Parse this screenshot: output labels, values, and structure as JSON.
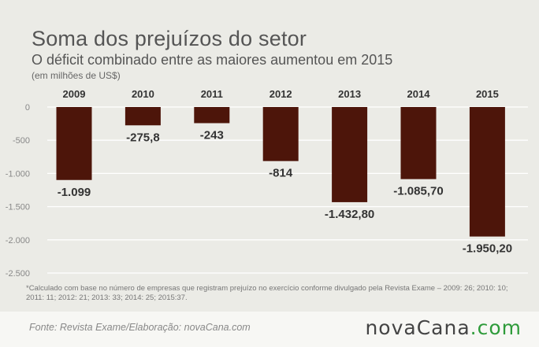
{
  "header": {
    "title": "Soma dos prejuízos do setor",
    "subtitle": "O déficit combinado entre as maiores aumentou em 2015",
    "unit_note": "(em milhões de US$)"
  },
  "chart_data": {
    "type": "bar",
    "categories": [
      "2009",
      "2010",
      "2011",
      "2012",
      "2013",
      "2014",
      "2015"
    ],
    "values": [
      -1099,
      -275.8,
      -243,
      -814,
      -1432.8,
      -1085.7,
      -1950.2
    ],
    "data_labels": [
      "-1.099",
      "-275,8",
      "-243",
      "-814",
      "-1.432,80",
      "-1.085,70",
      "-1.950,20"
    ],
    "ylim": [
      -2500,
      0
    ],
    "y_ticks": [
      0,
      -500,
      -1000,
      -1500,
      -2000,
      -2500
    ],
    "y_tick_labels": [
      "0",
      "-500",
      "-1.000",
      "-1.500",
      "-2.000",
      "-2.500"
    ],
    "x_labels_position": "top",
    "grid": true,
    "bar_color": "#4d150a"
  },
  "footnote": "*Calculado com base no número de empresas que registram prejuízo no exercício conforme divulgado pela Revista Exame – 2009: 26; 2010: 10; 2011: 11; 2012: 21; 2013: 33; 2014: 25; 2015:37.",
  "footer": {
    "source": "Fonte:  Revista  Exame/Elaboração:  novaCana.com",
    "logo_main": "novaCana",
    "logo_dot": ".com",
    "logo_color": "#2e9b3a"
  }
}
